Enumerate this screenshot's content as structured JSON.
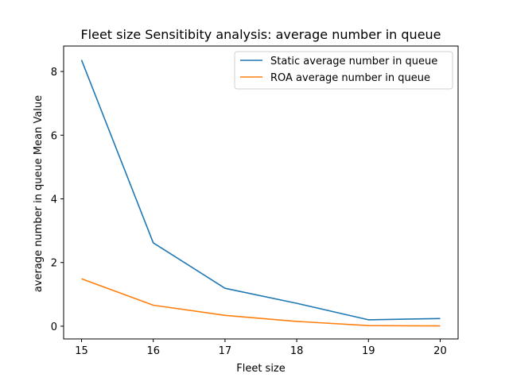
{
  "chart_data": {
    "type": "line",
    "title": "Fleet size Sensitibity analysis: average number in queue",
    "xlabel": "Fleet size",
    "ylabel": "average number in queue Mean Value",
    "x": [
      15,
      16,
      17,
      18,
      19,
      20
    ],
    "x_ticks": [
      "15",
      "16",
      "17",
      "18",
      "19",
      "20"
    ],
    "y_ticks": [
      "0",
      "2",
      "4",
      "6",
      "8"
    ],
    "xlim": [
      14.75,
      20.25
    ],
    "ylim": [
      -0.4,
      8.8
    ],
    "grid": false,
    "legend_position": "top-right",
    "series": [
      {
        "name": "Static average number in queue",
        "color": "#1f77b4",
        "values": [
          8.36,
          2.62,
          1.19,
          0.72,
          0.2,
          0.24
        ]
      },
      {
        "name": "ROA average number in queue",
        "color": "#ff7f0e",
        "values": [
          1.49,
          0.66,
          0.34,
          0.15,
          0.02,
          0.01
        ]
      }
    ]
  }
}
